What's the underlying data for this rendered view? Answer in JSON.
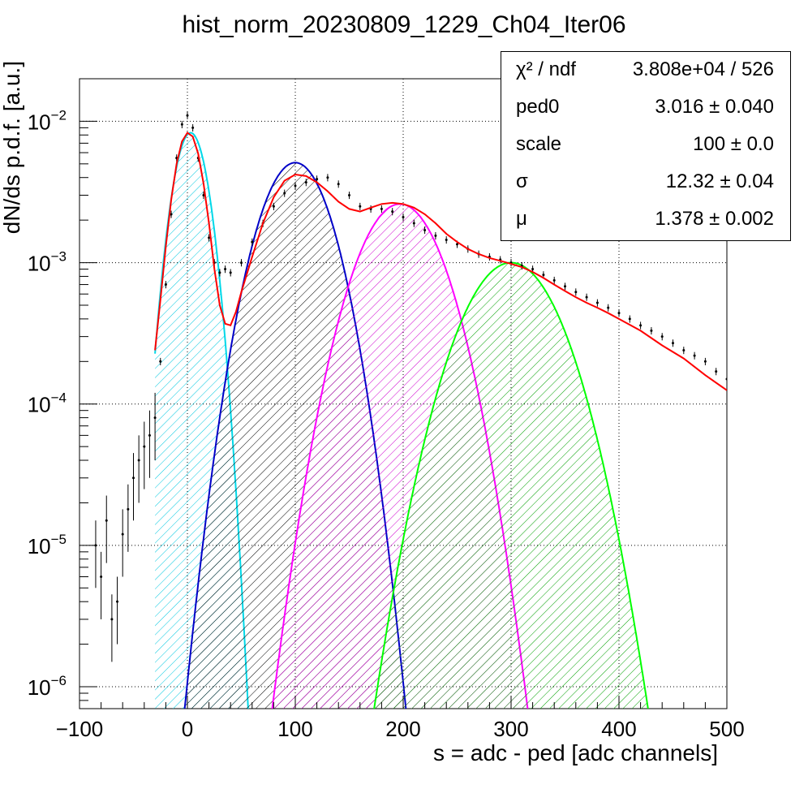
{
  "chart_data": {
    "type": "line",
    "title": "hist_norm_20230809_1229_Ch04_Iter06",
    "xlabel": "s = adc - ped [adc channels]",
    "ylabel": "dN/ds p.d.f. [a.u.]",
    "xlim": [
      -100,
      500
    ],
    "ylim": [
      7e-07,
      0.02
    ],
    "yscale": "log",
    "grid": true,
    "x_ticks": [
      -100,
      0,
      100,
      200,
      300,
      400,
      500
    ],
    "x_tick_labels": [
      "−100",
      "0",
      "100",
      "200",
      "300",
      "400",
      "500"
    ],
    "y_ticks": [
      1e-06,
      1e-05,
      0.0001,
      0.001,
      0.01
    ],
    "y_tick_labels": [
      {
        "base": "10",
        "exp": "−6"
      },
      {
        "base": "10",
        "exp": "−5"
      },
      {
        "base": "10",
        "exp": "−4"
      },
      {
        "base": "10",
        "exp": "−3"
      },
      {
        "base": "10",
        "exp": "−2"
      }
    ],
    "series": [
      {
        "kind": "histogram",
        "color": "#000000",
        "x": [
          -85,
          -80,
          -75,
          -70,
          -65,
          -60,
          -55,
          -50,
          -45,
          -40,
          -35,
          -30,
          -25,
          -20,
          -15,
          -10,
          -5,
          0,
          5,
          10,
          15,
          20,
          25,
          30,
          35,
          40,
          50,
          60,
          70,
          80,
          90,
          100,
          110,
          120,
          130,
          140,
          150,
          160,
          170,
          180,
          190,
          200,
          210,
          220,
          230,
          240,
          250,
          260,
          270,
          280,
          290,
          300,
          310,
          320,
          330,
          340,
          350,
          360,
          370,
          380,
          390,
          400,
          410,
          420,
          430,
          440,
          450,
          460,
          470,
          480,
          490,
          500
        ],
        "y": [
          1e-05,
          6e-06,
          1.5e-05,
          3e-06,
          4e-06,
          1.2e-05,
          1.8e-05,
          3e-05,
          4e-05,
          5e-05,
          6e-05,
          8e-05,
          0.0002,
          0.0007,
          0.0022,
          0.0055,
          0.0095,
          0.011,
          0.009,
          0.0055,
          0.003,
          0.0015,
          0.001,
          0.00085,
          0.0009,
          0.00085,
          0.001,
          0.0014,
          0.0019,
          0.0025,
          0.0031,
          0.0035,
          0.0037,
          0.0039,
          0.004,
          0.0036,
          0.003,
          0.0025,
          0.0024,
          0.0024,
          0.0023,
          0.0021,
          0.0019,
          0.0017,
          0.00155,
          0.00145,
          0.00135,
          0.00125,
          0.00115,
          0.0011,
          0.00105,
          0.001,
          0.00095,
          0.0009,
          0.00082,
          0.00075,
          0.00068,
          0.00062,
          0.00057,
          0.00052,
          0.00048,
          0.00044,
          0.0004,
          0.00036,
          0.00033,
          0.0003,
          0.00027,
          0.00024,
          0.00022,
          0.0002,
          0.00017,
          0.00015
        ]
      },
      {
        "kind": "fit",
        "color": "#ff0000",
        "x": [
          -30,
          -25,
          -20,
          -15,
          -10,
          -5,
          0,
          5,
          10,
          15,
          20,
          25,
          30,
          35,
          40,
          45,
          50,
          60,
          70,
          80,
          90,
          100,
          110,
          120,
          130,
          140,
          150,
          160,
          170,
          180,
          190,
          200,
          210,
          220,
          230,
          240,
          250,
          260,
          270,
          280,
          290,
          300,
          310,
          320,
          330,
          340,
          350,
          360,
          370,
          380,
          390,
          400,
          420,
          440,
          460,
          480,
          500
        ],
        "y": [
          0.00024,
          0.00055,
          0.0013,
          0.0028,
          0.005,
          0.0072,
          0.0083,
          0.0078,
          0.0059,
          0.0036,
          0.0019,
          0.0009,
          0.0005,
          0.00037,
          0.00036,
          0.00045,
          0.00062,
          0.0011,
          0.0019,
          0.0029,
          0.0038,
          0.0042,
          0.0041,
          0.0037,
          0.0032,
          0.0027,
          0.0024,
          0.0023,
          0.00245,
          0.0026,
          0.00265,
          0.0026,
          0.00245,
          0.0022,
          0.0019,
          0.0016,
          0.0014,
          0.00125,
          0.00115,
          0.00108,
          0.00103,
          0.00098,
          0.00093,
          0.00086,
          0.00078,
          0.0007,
          0.00063,
          0.00057,
          0.00052,
          0.00048,
          0.00044,
          0.0004,
          0.00033,
          0.00026,
          0.00021,
          0.00016,
          0.000125
        ]
      },
      {
        "kind": "component",
        "color": "#00d8e8",
        "hatch": "#00c8e0",
        "peak_x": 3,
        "peak_y": 0.0083,
        "sigma": 12.3,
        "xmin": -30,
        "xmax": 90
      },
      {
        "kind": "component",
        "color": "#0000c8",
        "hatch": "#000000",
        "peak_x": 100,
        "peak_y": 0.0051,
        "sigma": 24.3,
        "xmin": -30,
        "xmax": 500
      },
      {
        "kind": "component",
        "color": "#ff00ff",
        "hatch": "#d000d0",
        "peak_x": 197,
        "peak_y": 0.0026,
        "sigma": 29.2,
        "xmin": -30,
        "xmax": 500
      },
      {
        "kind": "component",
        "color": "#00ff00",
        "hatch": "#00a000",
        "peak_x": 300,
        "peak_y": 0.001,
        "sigma": 33.3,
        "xmin": -30,
        "xmax": 500
      }
    ]
  },
  "stats": [
    {
      "key": "χ² / ndf",
      "value": "3.808e+04 / 526"
    },
    {
      "key": "ped0",
      "value": "3.016 ± 0.040"
    },
    {
      "key": "scale",
      "value": "100 ± 0.0"
    },
    {
      "key": "σ",
      "value": "12.32 ± 0.04"
    },
    {
      "key": "μ",
      "value": "1.378 ± 0.002"
    }
  ]
}
